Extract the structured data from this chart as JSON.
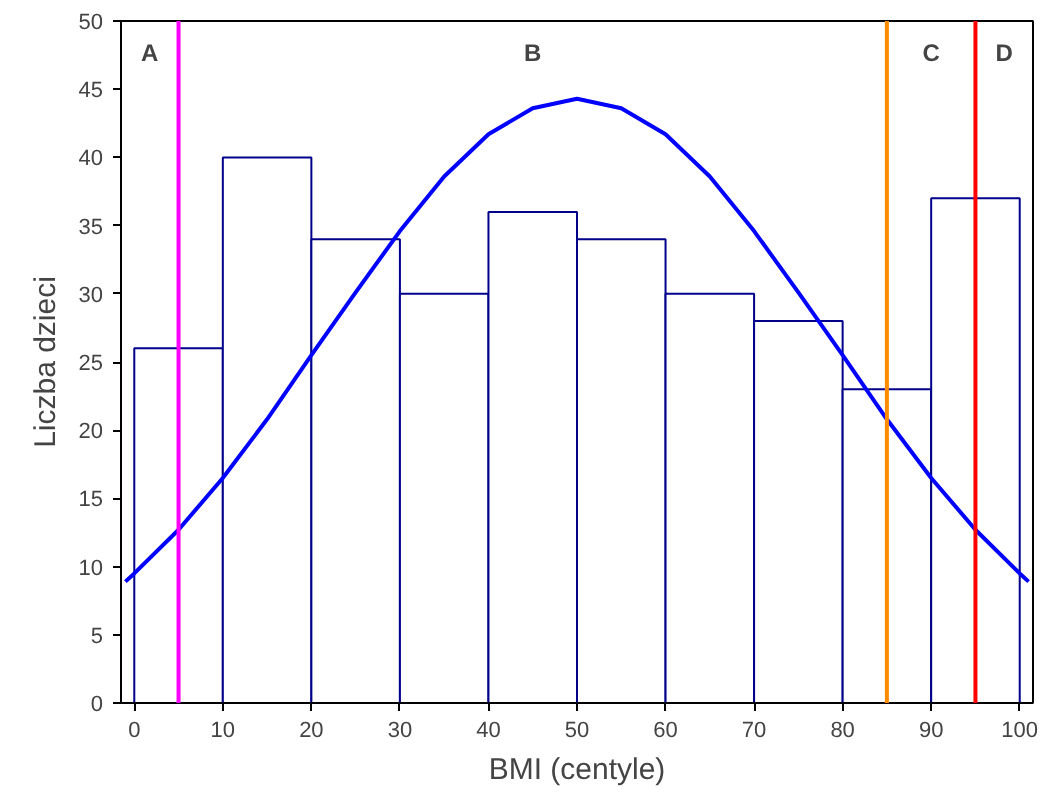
{
  "chart_data": {
    "type": "histogram",
    "xlabel": "BMI (centyle)",
    "ylabel": "Liczba dzieci",
    "bins": [
      0,
      10,
      20,
      30,
      40,
      50,
      60,
      70,
      80,
      90,
      100
    ],
    "values": [
      26,
      40,
      34,
      30,
      36,
      34,
      30,
      28,
      23,
      37
    ],
    "color": "#00008b",
    "series": [
      {
        "type": "line",
        "color": "#0000ff",
        "x": [
          -1,
          0,
          5,
          10,
          15,
          20,
          25,
          30,
          35,
          40,
          45,
          50,
          55,
          60,
          65,
          70,
          75,
          80,
          85,
          90,
          95,
          100,
          101
        ],
        "values": [
          8.9,
          9.5,
          12.7,
          16.5,
          20.8,
          25.5,
          30.1,
          34.6,
          38.6,
          41.7,
          43.6,
          44.3,
          43.6,
          41.7,
          38.6,
          34.6,
          30.1,
          25.5,
          20.8,
          16.5,
          12.7,
          9.5,
          8.9
        ]
      }
    ],
    "ref_lines": [
      {
        "axis": "x",
        "value": 5,
        "color": "#ff00ff"
      },
      {
        "axis": "x",
        "value": 85,
        "color": "#ff8c00"
      },
      {
        "axis": "x",
        "value": 95,
        "color": "#ff0000"
      }
    ],
    "annotations": [
      "A",
      "B",
      "C",
      "D"
    ],
    "xlim": [
      -1.5,
      101.5
    ],
    "ylim": [
      0,
      50
    ],
    "xticks": [
      0,
      10,
      20,
      30,
      40,
      50,
      60,
      70,
      80,
      90,
      100
    ],
    "yticks": [
      0,
      5,
      10,
      15,
      20,
      25,
      30,
      35,
      40,
      45,
      50
    ],
    "grid": false
  }
}
